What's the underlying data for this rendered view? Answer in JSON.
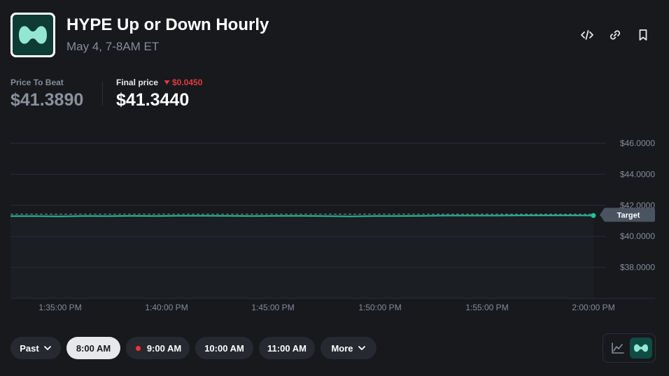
{
  "header": {
    "title": "HYPE Up or Down Hourly",
    "subtitle": "May 4, 7-8AM ET",
    "actions": [
      {
        "name": "embed-icon"
      },
      {
        "name": "link-icon"
      },
      {
        "name": "bookmark-icon"
      }
    ]
  },
  "prices": {
    "price_to_beat_label": "Price To Beat",
    "price_to_beat": "$41.3890",
    "final_price_label": "Final price",
    "final_price_change": "$0.0450",
    "final_price": "$41.3440"
  },
  "chart_data": {
    "type": "line",
    "ylim": [
      36,
      46
    ],
    "y_ticks": [
      38,
      40,
      42,
      44,
      46
    ],
    "y_tick_labels": [
      "$38.0000",
      "$40.0000",
      "$42.0000",
      "$44.0000",
      "$46.0000"
    ],
    "x_tick_labels": [
      "1:35:00 PM",
      "1:40:00 PM",
      "1:45:00 PM",
      "1:50:00 PM",
      "1:55:00 PM",
      "2:00:00 PM"
    ],
    "target": 41.389,
    "target_label": "Target",
    "grid": true,
    "series": [
      {
        "values": [
          41.3,
          41.3,
          41.29,
          41.31,
          41.3,
          41.32,
          41.31,
          41.33,
          41.33,
          41.32,
          41.31,
          41.32,
          41.32,
          41.3,
          41.29,
          41.31,
          41.31,
          41.32,
          41.34,
          41.34,
          41.34,
          41.35,
          41.35,
          41.35,
          41.344
        ]
      }
    ],
    "line_color": "#21c29a",
    "target_color": "#858d99"
  },
  "controls": {
    "past_label": "Past",
    "times": [
      {
        "label": "8:00 AM",
        "active": true,
        "live": false
      },
      {
        "label": "9:00 AM",
        "active": false,
        "live": true
      },
      {
        "label": "10:00 AM",
        "active": false,
        "live": false
      },
      {
        "label": "11:00 AM",
        "active": false,
        "live": false
      }
    ],
    "more_label": "More",
    "view_modes": [
      {
        "name": "line-chart-icon",
        "active": false
      },
      {
        "name": "hype-logo-icon",
        "active": true
      }
    ]
  },
  "colors": {
    "background": "#17191d",
    "accent": "#21c29a",
    "down": "#e23b3b",
    "muted": "#858d99"
  }
}
